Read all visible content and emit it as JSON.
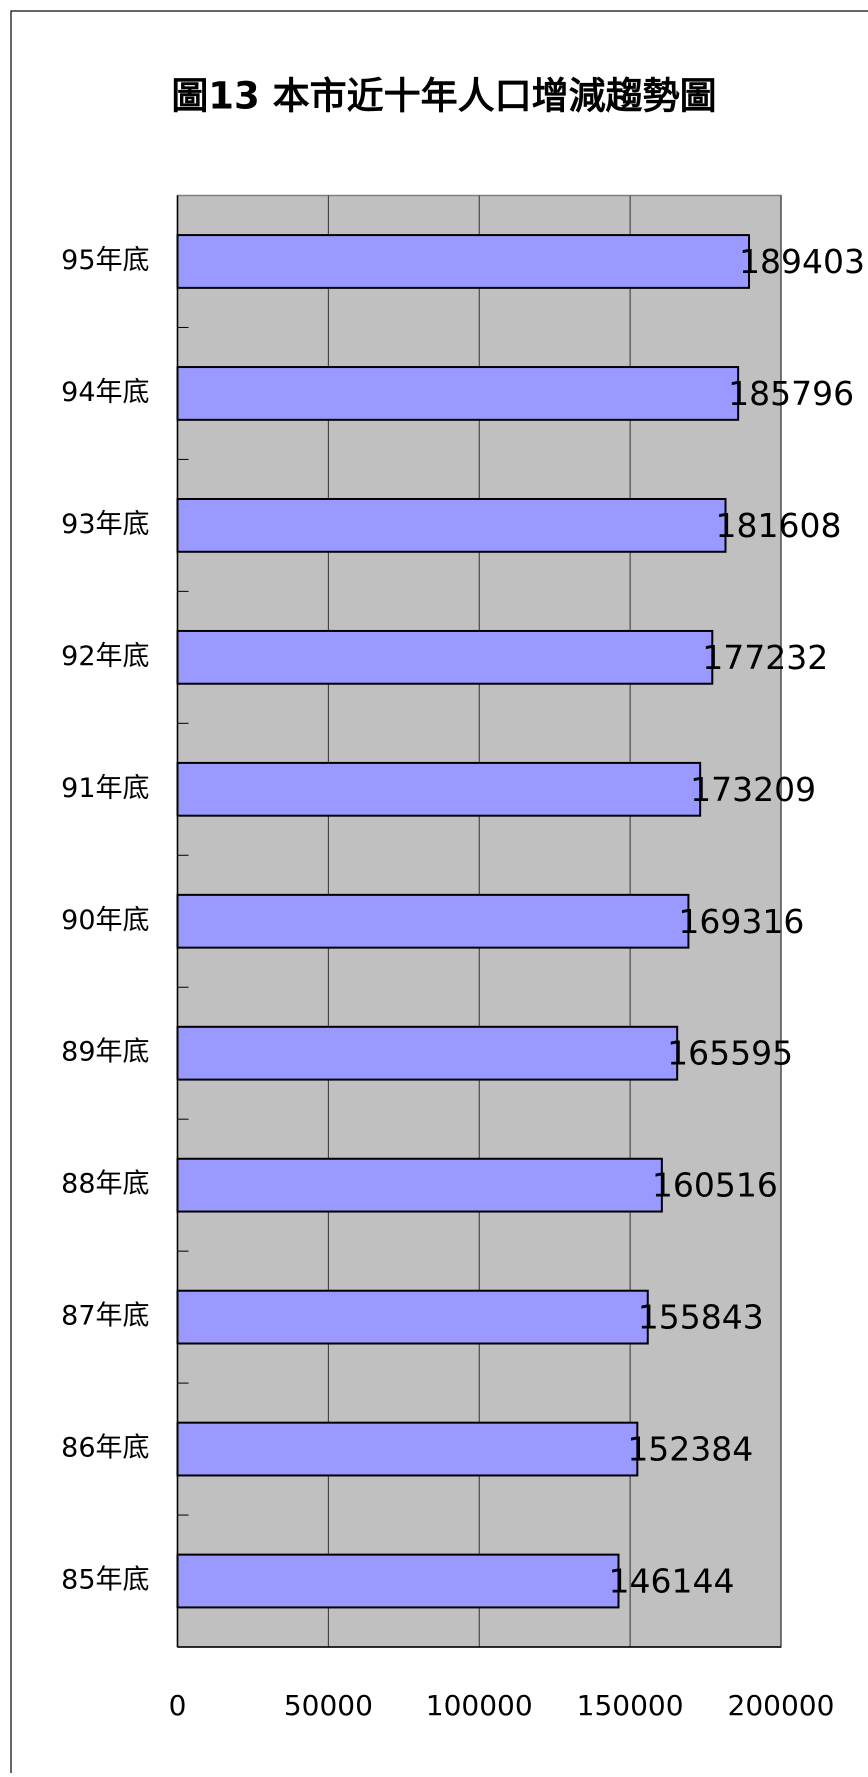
{
  "chart_data": {
    "type": "bar",
    "orientation": "horizontal",
    "title": "圖13 本市近十年人口增減趨勢圖",
    "categories": [
      "85年底",
      "86年底",
      "87年底",
      "88年底",
      "89年底",
      "90年底",
      "91年底",
      "92年底",
      "93年底",
      "94年底",
      "95年底"
    ],
    "values": [
      146144,
      152384,
      155843,
      160516,
      165595,
      169316,
      173209,
      177232,
      181608,
      185796,
      189403
    ],
    "color": "#9999ff",
    "xlim": [
      0,
      200000
    ],
    "xticks": [
      0,
      50000,
      100000,
      150000,
      200000
    ],
    "grid": true
  }
}
